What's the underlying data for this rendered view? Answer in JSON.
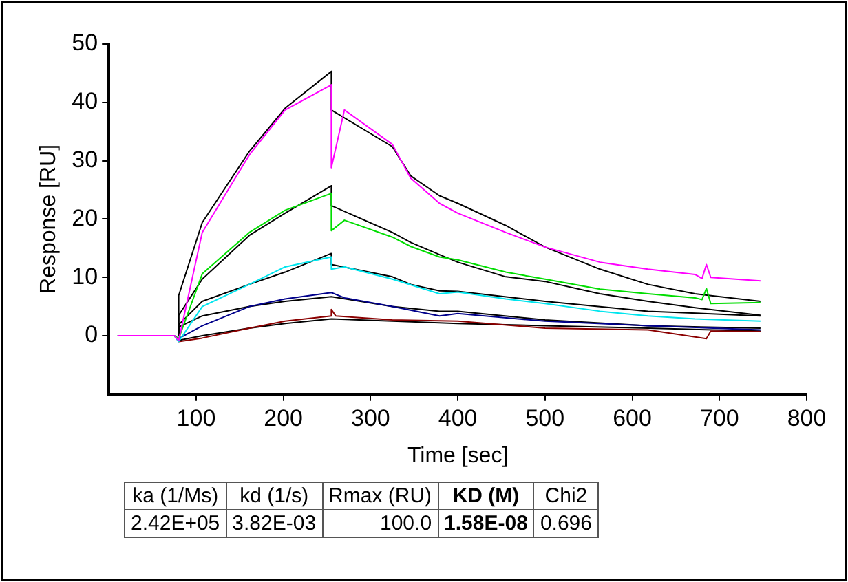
{
  "chart_data": {
    "type": "line",
    "xlabel": "Time [sec]",
    "ylabel": "Response [RU]",
    "xlim": [
      0,
      800
    ],
    "xticks": [
      100,
      200,
      300,
      400,
      500,
      600,
      700,
      800
    ],
    "ylim": [
      -10,
      50
    ],
    "yticks": [
      0,
      10,
      20,
      30,
      40,
      50
    ],
    "grid": false,
    "legend": false,
    "marker": "none",
    "line_style": "solid",
    "series": [
      {
        "color": "#ff00ff",
        "x": [
          10,
          75,
          80,
          107,
          161,
          202,
          255,
          255,
          270,
          325,
          346,
          379,
          400,
          455,
          500,
          563,
          618,
          672,
          680,
          685,
          690,
          747
        ],
        "values": [
          0,
          0,
          -0.8,
          17.7,
          31,
          38.7,
          43,
          28.8,
          38.7,
          32.8,
          27,
          22.7,
          21,
          17.7,
          15.2,
          12.6,
          11.4,
          10.5,
          9.8,
          12.2,
          10,
          9.4
        ]
      },
      {
        "color": "#00dd00",
        "x": [
          10,
          75,
          80,
          107,
          161,
          202,
          255,
          255,
          270,
          325,
          346,
          379,
          400,
          455,
          500,
          563,
          618,
          672,
          680,
          685,
          690,
          747
        ],
        "values": [
          0,
          0,
          -0.5,
          10.6,
          17.7,
          21.5,
          24.4,
          18,
          19.8,
          16.9,
          15.3,
          13.5,
          13,
          10.9,
          9.7,
          8,
          7.2,
          6.5,
          6.2,
          8.1,
          5.5,
          5.7
        ]
      },
      {
        "color": "#00e5ee",
        "x": [
          10,
          75,
          80,
          107,
          161,
          202,
          255,
          255,
          270,
          325,
          379,
          400,
          455,
          500,
          563,
          618,
          672,
          747
        ],
        "values": [
          0,
          0,
          -1,
          5,
          8.8,
          11.8,
          13.5,
          11.4,
          11.8,
          9.7,
          7.2,
          7.5,
          6.3,
          5.5,
          4.2,
          3.4,
          2.9,
          2.5
        ]
      },
      {
        "color": "#00008b",
        "x": [
          10,
          75,
          80,
          107,
          161,
          202,
          255,
          270,
          325,
          379,
          400,
          500,
          618,
          747
        ],
        "values": [
          0,
          0,
          -0.5,
          1.7,
          5,
          6.3,
          7.4,
          6.5,
          5,
          3.4,
          3.8,
          2.5,
          1.7,
          1
        ]
      },
      {
        "color": "#8b0000",
        "x": [
          10,
          75,
          80,
          107,
          161,
          202,
          255,
          255,
          260,
          325,
          400,
          500,
          618,
          685,
          690,
          747
        ],
        "values": [
          0,
          0,
          -1,
          -0.4,
          1.3,
          2.5,
          3.4,
          4.5,
          3.4,
          2.7,
          2.5,
          1.3,
          1,
          -0.5,
          0.8,
          0.7
        ]
      },
      {
        "color": "#000000",
        "x": [
          80,
          80,
          107,
          161,
          202,
          255,
          255,
          325,
          346,
          379,
          400,
          455,
          500,
          563,
          618,
          672,
          747
        ],
        "values": [
          0,
          6.9,
          19.4,
          31.6,
          39,
          45.3,
          38.7,
          32.4,
          27.4,
          24,
          22.7,
          18.9,
          15.2,
          11.4,
          8.8,
          7.2,
          5.9
        ]
      },
      {
        "color": "#000000",
        "x": [
          80,
          80,
          107,
          161,
          202,
          255,
          255,
          325,
          346,
          379,
          400,
          455,
          500,
          563,
          618,
          672,
          747
        ],
        "values": [
          0,
          3.5,
          9.7,
          17.2,
          21,
          25.7,
          22.3,
          17.7,
          16,
          13.9,
          12.6,
          10.1,
          9.3,
          7.2,
          5.9,
          4.8,
          3.5
        ]
      },
      {
        "color": "#000000",
        "x": [
          80,
          80,
          107,
          161,
          202,
          255,
          255,
          325,
          346,
          379,
          400,
          500,
          618,
          747
        ],
        "values": [
          0,
          1.9,
          5.9,
          8.8,
          10.9,
          14.1,
          12.2,
          10.1,
          8.8,
          7.7,
          7.6,
          5.9,
          4.2,
          3.4
        ]
      },
      {
        "color": "#000000",
        "x": [
          80,
          80,
          107,
          161,
          202,
          255,
          325,
          379,
          400,
          500,
          618,
          747
        ],
        "values": [
          0,
          1.5,
          3.4,
          5,
          5.9,
          6.7,
          5,
          4.2,
          4.2,
          2.7,
          1.7,
          1.3
        ]
      },
      {
        "color": "#000000",
        "x": [
          80,
          107,
          161,
          202,
          255,
          325,
          400,
          500,
          618,
          747
        ],
        "values": [
          -0.8,
          0,
          1.3,
          2.1,
          2.9,
          2.5,
          2.1,
          1.7,
          1.3,
          0.8
        ]
      }
    ],
    "annotations": [
      "ka (1/Ms)",
      "kd (1/s)",
      "Rmax (RU)",
      "KD (M)",
      "Chi2",
      "2.42E+05",
      "3.82E-03",
      "100.0",
      "1.58E-08",
      "0.696"
    ]
  }
}
